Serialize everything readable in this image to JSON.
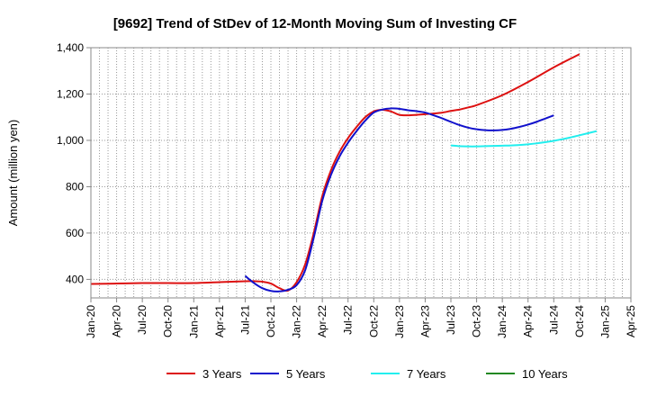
{
  "chart_data": {
    "type": "line",
    "title": "[9692]  Trend of StDev of 12-Month Moving Sum of Investing CF",
    "xlabel": "",
    "ylabel": "Amount (million yen)",
    "ylim": [
      320,
      1400
    ],
    "yticks": [
      400,
      600,
      800,
      1000,
      1200,
      1400
    ],
    "ytick_labels": [
      "400",
      "600",
      "800",
      "1,000",
      "1,200",
      "1,400"
    ],
    "xticks": [
      "Jan-20",
      "Apr-20",
      "Jul-20",
      "Oct-20",
      "Jan-21",
      "Apr-21",
      "Jul-21",
      "Oct-21",
      "Jan-22",
      "Apr-22",
      "Jul-22",
      "Oct-22",
      "Jan-23",
      "Apr-23",
      "Jul-23",
      "Oct-23",
      "Jan-24",
      "Apr-24",
      "Jul-24",
      "Oct-24",
      "Jan-25",
      "Apr-25"
    ],
    "x_index_start": "Jan-20",
    "grid": true,
    "legend_position": "bottom",
    "series": [
      {
        "name": "3 Years",
        "color": "#dd1111",
        "x": [
          0,
          3,
          6,
          9,
          12,
          15,
          18,
          19,
          20,
          21,
          22,
          23,
          24,
          25,
          26,
          27,
          28,
          29,
          30,
          31,
          32,
          33,
          34,
          35,
          36,
          37,
          38,
          39,
          40,
          41,
          42,
          43,
          44,
          45,
          48,
          51,
          54,
          57,
          60
        ],
        "y": [
          380,
          382,
          384,
          384,
          384,
          388,
          392,
          392,
          390,
          382,
          362,
          352,
          388,
          465,
          600,
          760,
          870,
          950,
          1010,
          1058,
          1100,
          1125,
          1132,
          1125,
          1110,
          1108,
          1110,
          1113,
          1116,
          1120,
          1127,
          1133,
          1142,
          1152,
          1195,
          1252,
          1315,
          1372,
          null
        ],
        "note": "last value placeholder"
      },
      {
        "name": "5 Years",
        "color": "#1111cc",
        "x": [
          18,
          19,
          20,
          21,
          22,
          23,
          24,
          25,
          26,
          27,
          28,
          29,
          30,
          31,
          32,
          33,
          34,
          35,
          36,
          37,
          38,
          39,
          40,
          41,
          42,
          43,
          44,
          45,
          46,
          47,
          48,
          49,
          50,
          51,
          52,
          53,
          54,
          55,
          56,
          57
        ],
        "y": [
          415,
          385,
          362,
          350,
          348,
          355,
          375,
          440,
          580,
          740,
          850,
          930,
          990,
          1040,
          1085,
          1120,
          1133,
          1138,
          1136,
          1130,
          1126,
          1120,
          1108,
          1095,
          1080,
          1066,
          1055,
          1048,
          1044,
          1043,
          1045,
          1050,
          1058,
          1068,
          1080,
          1094,
          1108,
          null,
          null,
          null
        ]
      },
      {
        "name": "7 Years",
        "color": "#22eeee",
        "x": [
          42,
          43,
          44,
          45,
          46,
          47,
          48,
          49,
          50,
          51,
          52,
          53,
          54,
          55,
          56,
          57,
          58,
          59,
          60,
          61
        ],
        "y": [
          978,
          975,
          974,
          974,
          975,
          976,
          977,
          978,
          980,
          983,
          987,
          992,
          998,
          1005,
          1013,
          1022,
          1031,
          1040,
          null,
          null
        ]
      },
      {
        "name": "10 Years",
        "color": "#228822",
        "x": [],
        "y": []
      }
    ]
  }
}
